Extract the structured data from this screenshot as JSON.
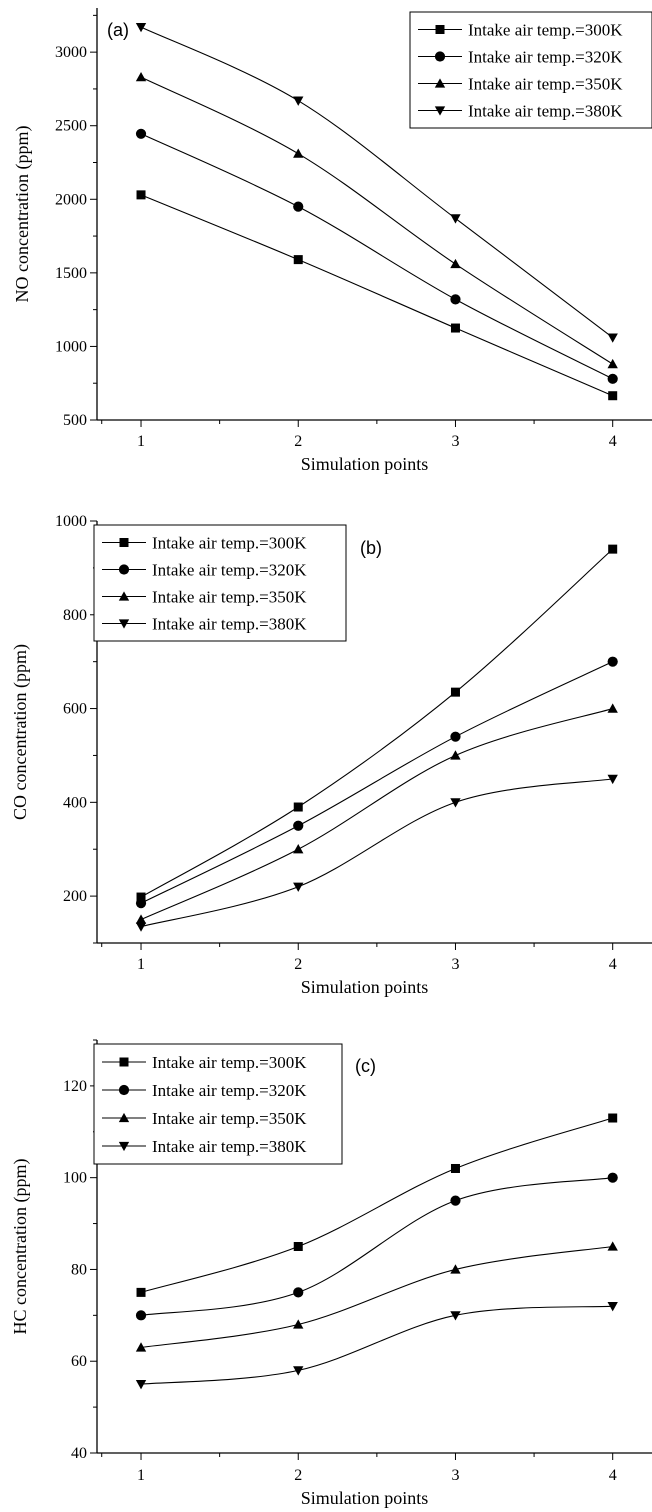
{
  "chart_data": [
    {
      "type": "line",
      "panel_label": "(a)",
      "xlabel": "Simulation points",
      "ylabel": "NO concentration (ppm)",
      "x": [
        1,
        2,
        3,
        4
      ],
      "xticks": [
        "1",
        "2",
        "3",
        "4"
      ],
      "xlim": [
        0.72,
        4.25
      ],
      "ylim": [
        500,
        3300
      ],
      "yticks": [
        500,
        1000,
        1500,
        2000,
        2500,
        3000
      ],
      "grid": false,
      "legend_position": "top-right",
      "series": [
        {
          "name": "Intake air temp.=300K",
          "marker": "square",
          "values": [
            2030,
            1590,
            1125,
            665
          ]
        },
        {
          "name": "Intake air temp.=320K",
          "marker": "circle",
          "values": [
            2445,
            1950,
            1320,
            780
          ]
        },
        {
          "name": "Intake air temp.=350K",
          "marker": "triangle-up",
          "values": [
            2830,
            2310,
            1560,
            880
          ]
        },
        {
          "name": "Intake air temp.=380K",
          "marker": "triangle-down",
          "values": [
            3170,
            2670,
            1870,
            1060
          ]
        }
      ]
    },
    {
      "type": "line",
      "panel_label": "(b)",
      "xlabel": "Simulation points",
      "ylabel": "CO concentration (ppm)",
      "x": [
        1,
        2,
        3,
        4
      ],
      "xticks": [
        "1",
        "2",
        "3",
        "4"
      ],
      "xlim": [
        0.72,
        4.25
      ],
      "ylim": [
        100,
        1000
      ],
      "yticks": [
        200,
        400,
        600,
        800,
        1000
      ],
      "grid": false,
      "legend_position": "top-left",
      "series": [
        {
          "name": "Intake air temp.=300K",
          "marker": "square",
          "values": [
            198,
            390,
            635,
            940
          ]
        },
        {
          "name": "Intake air temp.=320K",
          "marker": "circle",
          "values": [
            185,
            350,
            540,
            700
          ]
        },
        {
          "name": "Intake air temp.=350K",
          "marker": "triangle-up",
          "values": [
            150,
            300,
            500,
            600
          ]
        },
        {
          "name": "Intake air temp.=380K",
          "marker": "triangle-down",
          "values": [
            135,
            220,
            400,
            450
          ]
        }
      ]
    },
    {
      "type": "line",
      "panel_label": "(c)",
      "xlabel": "Simulation points",
      "ylabel": "HC concentration (ppm)",
      "x": [
        1,
        2,
        3,
        4
      ],
      "xticks": [
        "1",
        "2",
        "3",
        "4"
      ],
      "xlim": [
        0.72,
        4.25
      ],
      "ylim": [
        40,
        130
      ],
      "yticks": [
        40,
        60,
        80,
        100,
        120
      ],
      "grid": false,
      "legend_position": "top-left",
      "series": [
        {
          "name": "Intake air temp.=300K",
          "marker": "square",
          "values": [
            75,
            85,
            102,
            113
          ]
        },
        {
          "name": "Intake air temp.=320K",
          "marker": "circle",
          "values": [
            70,
            75,
            95,
            100
          ]
        },
        {
          "name": "Intake air temp.=350K",
          "marker": "triangle-up",
          "values": [
            63,
            68,
            80,
            85
          ]
        },
        {
          "name": "Intake air temp.=380K",
          "marker": "triangle-down",
          "values": [
            55,
            58,
            70,
            72
          ]
        }
      ]
    }
  ]
}
